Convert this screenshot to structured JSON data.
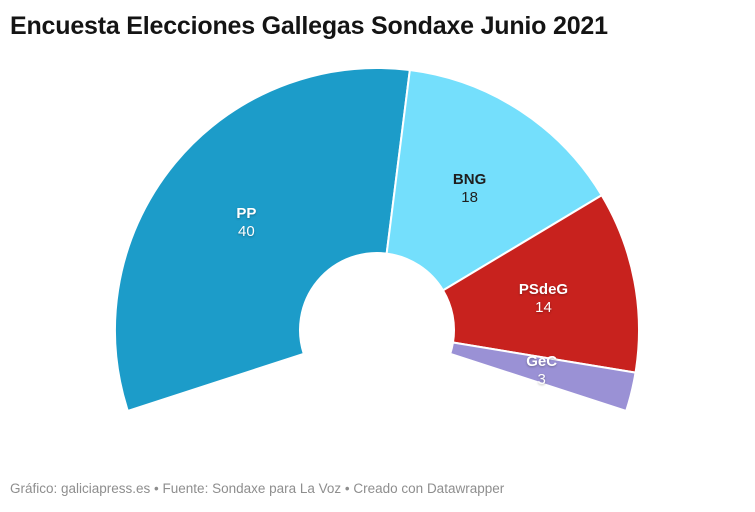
{
  "title": "Encuesta Elecciones Gallegas Sondaxe Junio 2021",
  "footer": "Gráfico: galiciapress.es • Fuente: Sondaxe para La Voz • Creado con Datawrapper",
  "chart_data": {
    "type": "pie",
    "variant": "half-donut",
    "title": "Encuesta Elecciones Gallegas Sondaxe Junio 2021",
    "categories": [
      "PP",
      "BNG",
      "PSdeG",
      "GeC"
    ],
    "values": [
      40,
      18,
      14,
      3
    ],
    "total_seats": 75,
    "colors": [
      "#1C9CC9",
      "#74DFFC",
      "#C8221E",
      "#9A91D5"
    ],
    "label_colors": [
      "#FFFFFF",
      "#1F1F1F",
      "#FFFFFF",
      "#FFFFFF"
    ],
    "labels_inside": true,
    "start_angle_degrees": 198,
    "span_degrees": 216,
    "inner_radius_ratio": 0.29,
    "legend_position": "none",
    "source_note": "Fuente: Sondaxe para La Voz",
    "graphic_credit": "Gráfico: galiciapress.es",
    "tool_credit": "Creado con Datawrapper"
  }
}
